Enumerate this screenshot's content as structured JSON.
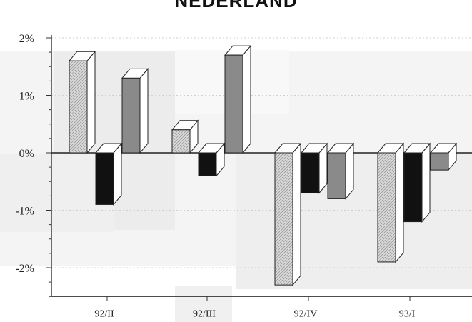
{
  "chart_data": {
    "type": "bar",
    "title": "NEDERLAND",
    "xlabel": "",
    "ylabel": "",
    "categories": [
      "92/II",
      "92/III",
      "92/IV",
      "93/I"
    ],
    "series": [
      {
        "values": [
          1.6,
          0.4,
          -2.3,
          -1.9
        ],
        "color": "#cfcfcf",
        "pattern": "hatched-light"
      },
      {
        "values": [
          -0.9,
          -0.4,
          -0.7,
          -1.2
        ],
        "color": "#111111",
        "pattern": "solid-black"
      },
      {
        "values": [
          1.3,
          1.7,
          -0.8,
          -0.3
        ],
        "color": "#8a8a8a",
        "pattern": "solid-gray"
      }
    ],
    "ylim": [
      -2.5,
      2
    ],
    "yticks": [
      2,
      1,
      0,
      -1,
      -2
    ],
    "ytick_labels": [
      "2%",
      "1%",
      "0%",
      "-1%",
      "-2%"
    ],
    "grid": true,
    "bar_style": "3d"
  }
}
